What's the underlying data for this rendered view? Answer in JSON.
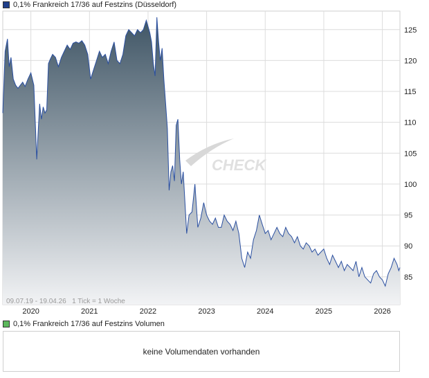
{
  "price_chart": {
    "legend_label": "0,1% Frankreich 17/36 auf Festzins (Düsseldorf)",
    "range_note": "09.07.19 - 19.04.26   1 Tick = 1 Woche",
    "watermark_text": "CHECK",
    "series_color": "#2a4fa0",
    "fill_top_color": "#3f5565",
    "fill_bottom_color": "#f2f3f5"
  },
  "volume_chart": {
    "legend_label": "0,1% Frankreich 17/36 auf Festzins Volumen",
    "message": "keine Volumendaten vorhanden",
    "legend_color": "#5cb85c"
  },
  "chart_data": {
    "type": "area",
    "x_unit": "year",
    "xlim": [
      2019.52,
      2026.3
    ],
    "ylim": [
      80.5,
      128
    ],
    "y_ticks": [
      85,
      90,
      95,
      100,
      105,
      110,
      115,
      120,
      125
    ],
    "x_ticks": [
      2020,
      2021,
      2022,
      2023,
      2024,
      2025,
      2026
    ],
    "grid": true,
    "x": [
      2019.52,
      2019.56,
      2019.6,
      2019.63,
      2019.66,
      2019.7,
      2019.74,
      2019.78,
      2019.82,
      2019.86,
      2019.9,
      2019.95,
      2020.0,
      2020.05,
      2020.1,
      2020.15,
      2020.18,
      2020.21,
      2020.24,
      2020.27,
      2020.3,
      2020.33,
      2020.37,
      2020.42,
      2020.47,
      2020.52,
      2020.57,
      2020.62,
      2020.67,
      2020.72,
      2020.77,
      2020.82,
      2020.87,
      2020.92,
      2020.97,
      2021.02,
      2021.07,
      2021.12,
      2021.17,
      2021.22,
      2021.27,
      2021.32,
      2021.37,
      2021.42,
      2021.47,
      2021.52,
      2021.57,
      2021.62,
      2021.67,
      2021.72,
      2021.77,
      2021.82,
      2021.87,
      2021.92,
      2021.97,
      2022.0,
      2022.03,
      2022.06,
      2022.09,
      2022.12,
      2022.15,
      2022.18,
      2022.21,
      2022.24,
      2022.27,
      2022.3,
      2022.33,
      2022.36,
      2022.39,
      2022.42,
      2022.45,
      2022.48,
      2022.51,
      2022.54,
      2022.57,
      2022.6,
      2022.63,
      2022.66,
      2022.7,
      2022.75,
      2022.8,
      2022.85,
      2022.9,
      2022.95,
      2023.0,
      2023.05,
      2023.1,
      2023.15,
      2023.2,
      2023.25,
      2023.3,
      2023.35,
      2023.4,
      2023.45,
      2023.5,
      2023.55,
      2023.6,
      2023.65,
      2023.7,
      2023.75,
      2023.8,
      2023.85,
      2023.9,
      2023.95,
      2024.0,
      2024.05,
      2024.1,
      2024.15,
      2024.2,
      2024.25,
      2024.3,
      2024.35,
      2024.4,
      2024.45,
      2024.5,
      2024.55,
      2024.6,
      2024.65,
      2024.7,
      2024.75,
      2024.8,
      2024.85,
      2024.9,
      2024.95,
      2025.0,
      2025.05,
      2025.1,
      2025.15,
      2025.2,
      2025.25,
      2025.3,
      2025.35,
      2025.4,
      2025.45,
      2025.5,
      2025.55,
      2025.6,
      2025.65,
      2025.7,
      2025.75,
      2025.8,
      2025.85,
      2025.9,
      2025.95,
      2026.0,
      2026.05,
      2026.1,
      2026.15,
      2026.2,
      2026.25,
      2026.28,
      2026.3
    ],
    "y": [
      111.5,
      121.5,
      123.5,
      119.0,
      120.5,
      117.0,
      116.0,
      115.5,
      116.0,
      116.5,
      115.8,
      117.0,
      118.0,
      116.0,
      104.0,
      113.0,
      110.5,
      112.5,
      111.5,
      112.0,
      119.5,
      120.2,
      121.0,
      120.5,
      119.0,
      120.5,
      121.5,
      122.5,
      121.8,
      122.8,
      123.0,
      122.8,
      123.2,
      122.5,
      121.0,
      117.0,
      118.5,
      120.0,
      121.5,
      120.5,
      121.0,
      119.5,
      121.5,
      123.0,
      120.0,
      119.5,
      121.0,
      124.0,
      125.0,
      124.5,
      124.0,
      125.0,
      124.5,
      125.0,
      126.5,
      125.5,
      124.5,
      123.0,
      119.5,
      117.5,
      127.0,
      123.0,
      120.0,
      122.0,
      117.0,
      113.0,
      109.0,
      99.0,
      102.0,
      103.0,
      100.5,
      109.5,
      110.5,
      104.0,
      100.0,
      102.0,
      97.0,
      92.0,
      95.0,
      95.5,
      100.0,
      93.0,
      94.5,
      97.0,
      95.0,
      94.0,
      93.5,
      94.5,
      93.0,
      93.0,
      95.0,
      94.0,
      93.5,
      92.5,
      94.0,
      92.0,
      88.0,
      86.5,
      89.0,
      88.0,
      91.0,
      92.5,
      95.0,
      93.5,
      92.0,
      92.5,
      91.0,
      92.0,
      93.0,
      92.0,
      91.5,
      93.0,
      92.0,
      91.5,
      90.5,
      91.5,
      90.0,
      89.5,
      90.5,
      90.0,
      89.0,
      89.5,
      88.5,
      89.0,
      89.5,
      88.0,
      87.0,
      88.5,
      87.5,
      86.5,
      87.5,
      86.0,
      87.0,
      86.5,
      86.0,
      87.5,
      85.0,
      86.5,
      85.0,
      84.5,
      84.0,
      85.5,
      86.0,
      85.0,
      84.5,
      83.5,
      85.5,
      86.5,
      88.0,
      87.0,
      86.0,
      86.5
    ]
  }
}
